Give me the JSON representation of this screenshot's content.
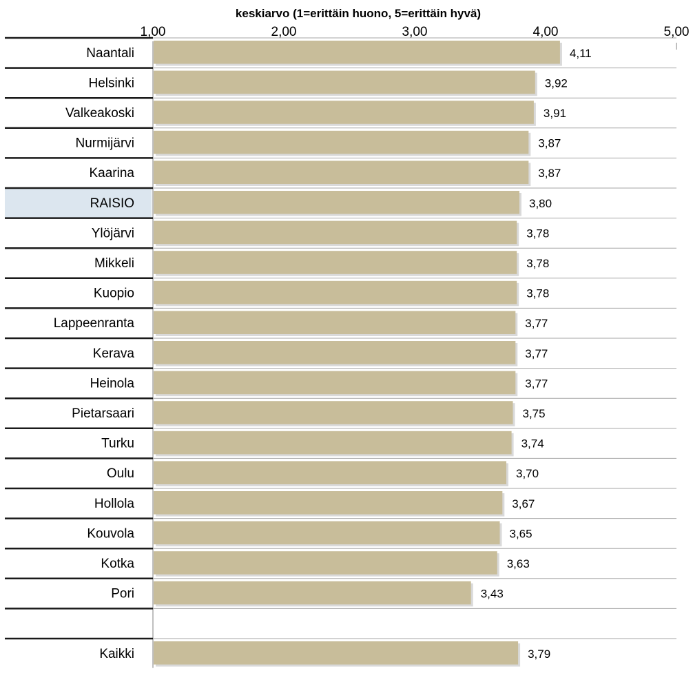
{
  "chart_data": {
    "type": "bar",
    "orientation": "horizontal",
    "title": "keskiarvo (1=erittäin huono, 5=erittäin hyvä)",
    "xlim": [
      1,
      5
    ],
    "ticks": [
      "1,00",
      "2,00",
      "3,00",
      "4,00",
      "5,00"
    ],
    "tick_values": [
      1,
      2,
      3,
      4,
      5
    ],
    "grid": true,
    "bar_color": "#c8bd9a",
    "highlight_color": "#dce6ef",
    "highlight_category": "RAISIO",
    "categories": [
      "Naantali",
      "Helsinki",
      "Valkeakoski",
      "Nurmijärvi",
      "Kaarina",
      "RAISIO",
      "Ylöjärvi",
      "Mikkeli",
      "Kuopio",
      "Lappeenranta",
      "Kerava",
      "Heinola",
      "Pietarsaari",
      "Turku",
      "Oulu",
      "Hollola",
      "Kouvola",
      "Kotka",
      "Pori",
      "",
      "Kaikki"
    ],
    "values": [
      4.11,
      3.92,
      3.91,
      3.87,
      3.87,
      3.8,
      3.78,
      3.78,
      3.78,
      3.77,
      3.77,
      3.77,
      3.75,
      3.74,
      3.7,
      3.67,
      3.65,
      3.63,
      3.43,
      null,
      3.79
    ],
    "labels": [
      "4,11",
      "3,92",
      "3,91",
      "3,87",
      "3,87",
      "3,80",
      "3,78",
      "3,78",
      "3,78",
      "3,77",
      "3,77",
      "3,77",
      "3,75",
      "3,74",
      "3,70",
      "3,67",
      "3,65",
      "3,63",
      "3,43",
      "",
      "3,79"
    ]
  }
}
